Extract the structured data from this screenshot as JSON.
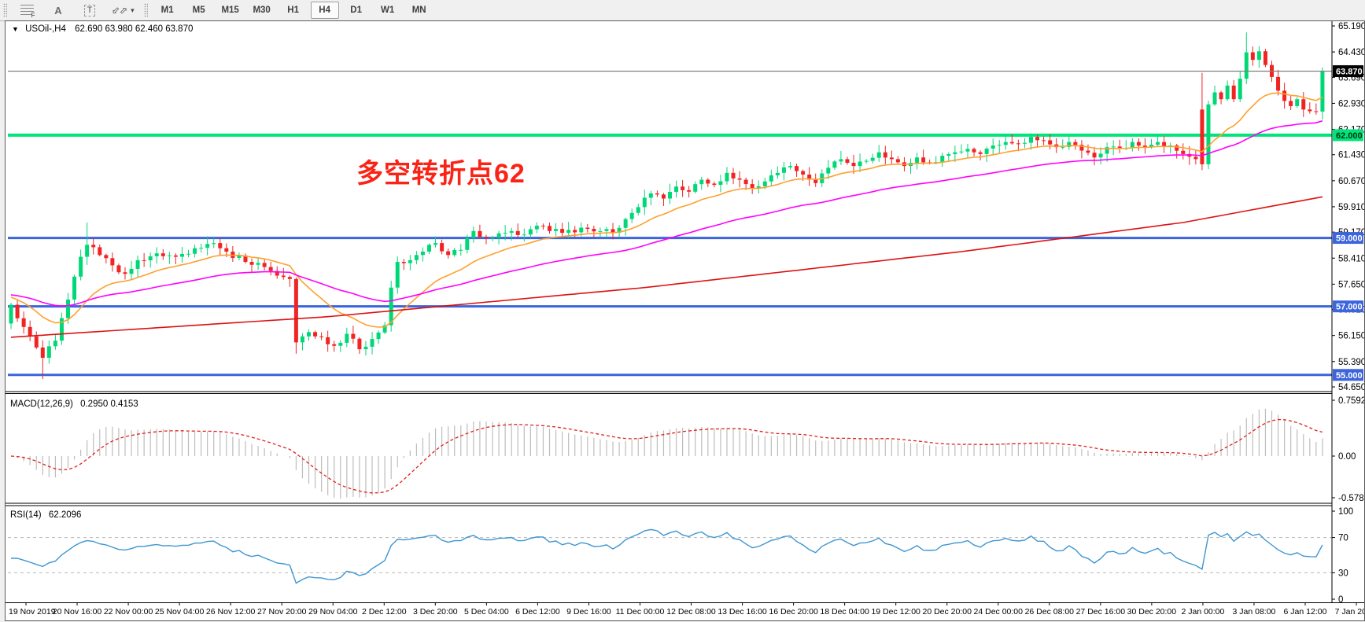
{
  "toolbar": {
    "tools": [
      {
        "name": "fibonacci-grid",
        "glyph": "fib",
        "label": "F"
      },
      {
        "name": "text-label",
        "glyph": "A"
      },
      {
        "name": "text-box",
        "glyph": "T"
      },
      {
        "name": "arrows-objects",
        "glyph": "arrows",
        "caret": "▾"
      }
    ],
    "timeframes": [
      "M1",
      "M5",
      "M15",
      "M30",
      "H1",
      "H4",
      "D1",
      "W1",
      "MN"
    ],
    "active_timeframe": "H4"
  },
  "icons": {
    "symbol_caret": "▼",
    "dropdown_caret": "▾",
    "arrows_glyph": "⬃⬀"
  },
  "title": {
    "symbol_line": "USOil-,H4",
    "ohlc_line": "62.690 63.980 62.460 63.870"
  },
  "annotation": {
    "text": "多空转折点62",
    "color": "#fb2316"
  },
  "macd_panel": {
    "label": "MACD(12,26,9)",
    "values": "0.2950 0.4153",
    "ticks": [
      "0.7592",
      "0.00",
      "-0.5785"
    ]
  },
  "rsi_panel": {
    "label": "RSI(14)",
    "value": "62.2096",
    "ticks": [
      "100",
      "70",
      "30",
      "0"
    ]
  },
  "colors": {
    "bull": "#00d877",
    "bear": "#f02422",
    "ma_fast": "#ffa02e",
    "ma_mid": "#ff00ff",
    "ma_slow": "#dd1212",
    "level_blue": "#3c64dc",
    "level_green": "#00e57a",
    "current_gray": "#808080",
    "macd_hist": "#bdbdbd",
    "macd_signal": "#e02020",
    "rsi_line": "#3e96d2",
    "rsi_levels": "#b8b8b8",
    "axis_text": "#000000"
  },
  "chart_data": {
    "type": "candlestick",
    "symbol": "USOil-",
    "period": "H4",
    "bars_total": 208,
    "price_axis": {
      "min": 54.65,
      "max": 65.19,
      "tick_labels": [
        "65.190",
        "64.430",
        "63.690",
        "62.930",
        "62.170",
        "61.430",
        "60.670",
        "59.910",
        "59.170",
        "58.410",
        "57.650",
        "56.910",
        "56.150",
        "55.390",
        "54.650"
      ],
      "tick_values": [
        65.19,
        64.43,
        63.69,
        62.93,
        62.17,
        61.43,
        60.67,
        59.91,
        59.17,
        58.41,
        57.65,
        56.91,
        56.15,
        55.39,
        54.65
      ]
    },
    "last_candle": {
      "open": 62.69,
      "high": 63.98,
      "low": 62.46,
      "close": 63.87
    },
    "current_price": {
      "value": 63.87,
      "label": "63.870",
      "badge_bg": "#000000",
      "badge_fg": "#ffffff"
    },
    "level_lines": [
      {
        "price": 62.0,
        "label": "62.000",
        "color": "#00e57a",
        "width": 4,
        "badge_bg": "#00e57a",
        "badge_fg": "#003018"
      },
      {
        "price": 59.0,
        "label": "59.000",
        "color": "#3c64dc",
        "width": 3,
        "badge_bg": "#3c64dc",
        "badge_fg": "#ffffff"
      },
      {
        "price": 57.0,
        "label": "57.000",
        "color": "#3c64dc",
        "width": 3,
        "badge_bg": "#3c64dc",
        "badge_fg": "#ffffff"
      },
      {
        "price": 55.0,
        "label": "55.000",
        "color": "#3c64dc",
        "width": 3,
        "badge_bg": "#3c64dc",
        "badge_fg": "#ffffff"
      }
    ],
    "close_anchors": [
      [
        0,
        57.05
      ],
      [
        2,
        56.4
      ],
      [
        4,
        55.8
      ],
      [
        5,
        55.5
      ],
      [
        7,
        56.0
      ],
      [
        9,
        57.2
      ],
      [
        11,
        58.45
      ],
      [
        12,
        58.8
      ],
      [
        14,
        58.5
      ],
      [
        16,
        58.2
      ],
      [
        18,
        57.95
      ],
      [
        20,
        58.35
      ],
      [
        23,
        58.55
      ],
      [
        26,
        58.45
      ],
      [
        29,
        58.7
      ],
      [
        32,
        58.85
      ],
      [
        34,
        58.6
      ],
      [
        37,
        58.3
      ],
      [
        40,
        58.15
      ],
      [
        42,
        57.9
      ],
      [
        44,
        57.8
      ],
      [
        45,
        55.95
      ],
      [
        47,
        56.25
      ],
      [
        49,
        56.1
      ],
      [
        51,
        55.85
      ],
      [
        53,
        56.2
      ],
      [
        55,
        55.75
      ],
      [
        57,
        56.05
      ],
      [
        59,
        56.45
      ],
      [
        60,
        57.55
      ],
      [
        61,
        58.3
      ],
      [
        63,
        58.35
      ],
      [
        65,
        58.6
      ],
      [
        67,
        58.85
      ],
      [
        69,
        58.5
      ],
      [
        71,
        58.65
      ],
      [
        73,
        59.2
      ],
      [
        75,
        59.0
      ],
      [
        78,
        59.15
      ],
      [
        81,
        59.1
      ],
      [
        84,
        59.35
      ],
      [
        87,
        59.15
      ],
      [
        90,
        59.3
      ],
      [
        93,
        59.2
      ],
      [
        95,
        59.15
      ],
      [
        97,
        59.55
      ],
      [
        99,
        59.9
      ],
      [
        101,
        60.3
      ],
      [
        103,
        60.15
      ],
      [
        105,
        60.5
      ],
      [
        107,
        60.35
      ],
      [
        109,
        60.7
      ],
      [
        111,
        60.55
      ],
      [
        113,
        60.9
      ],
      [
        115,
        60.7
      ],
      [
        117,
        60.45
      ],
      [
        119,
        60.65
      ],
      [
        121,
        60.9
      ],
      [
        123,
        61.1
      ],
      [
        125,
        60.85
      ],
      [
        127,
        60.6
      ],
      [
        129,
        61.05
      ],
      [
        131,
        61.3
      ],
      [
        133,
        61.1
      ],
      [
        135,
        61.25
      ],
      [
        137,
        61.5
      ],
      [
        139,
        61.3
      ],
      [
        141,
        61.1
      ],
      [
        143,
        61.35
      ],
      [
        145,
        61.2
      ],
      [
        147,
        61.4
      ],
      [
        149,
        61.5
      ],
      [
        151,
        61.6
      ],
      [
        153,
        61.45
      ],
      [
        155,
        61.7
      ],
      [
        157,
        61.8
      ],
      [
        159,
        61.75
      ],
      [
        161,
        61.95
      ],
      [
        163,
        61.85
      ],
      [
        165,
        61.65
      ],
      [
        167,
        61.8
      ],
      [
        169,
        61.55
      ],
      [
        171,
        61.35
      ],
      [
        173,
        61.65
      ],
      [
        175,
        61.6
      ],
      [
        177,
        61.8
      ],
      [
        179,
        61.65
      ],
      [
        181,
        61.8
      ],
      [
        183,
        61.7
      ],
      [
        185,
        61.45
      ],
      [
        187,
        61.3
      ],
      [
        188,
        61.15
      ],
      [
        189,
        62.9
      ],
      [
        190,
        63.25
      ],
      [
        191,
        63.05
      ],
      [
        192,
        63.45
      ],
      [
        193,
        63.05
      ],
      [
        194,
        63.65
      ],
      [
        195,
        64.42
      ],
      [
        196,
        64.2
      ],
      [
        197,
        64.45
      ],
      [
        198,
        64.05
      ],
      [
        199,
        63.7
      ],
      [
        200,
        63.3
      ],
      [
        201,
        63.0
      ],
      [
        202,
        62.85
      ],
      [
        203,
        63.05
      ],
      [
        204,
        62.75
      ],
      [
        205,
        62.7
      ],
      [
        206,
        62.69
      ],
      [
        207,
        63.87
      ]
    ],
    "special_candles": {
      "5": {
        "l": 54.88
      },
      "12": {
        "h": 59.45
      },
      "45": {
        "o": 57.8,
        "h": 57.85,
        "l": 55.62,
        "c": 55.95
      },
      "188": {
        "o": 62.75,
        "h": 63.82,
        "l": 60.98,
        "c": 61.15
      },
      "195": {
        "h": 65.0
      },
      "207": {
        "o": 62.69,
        "h": 63.98,
        "l": 62.46,
        "c": 63.87
      }
    },
    "moving_averages": [
      {
        "name": "fast-ma",
        "color": "#ffa02e",
        "type": "ema",
        "period": 16,
        "seed": 57.3
      },
      {
        "name": "mid-ma",
        "color": "#ff00ff",
        "type": "ema",
        "period": 52,
        "seed": 57.35
      },
      {
        "name": "slow-ma",
        "color": "#dd1212",
        "type": "anchors",
        "points": [
          [
            0,
            56.1
          ],
          [
            50,
            56.7
          ],
          [
            100,
            57.55
          ],
          [
            150,
            58.6
          ],
          [
            185,
            59.45
          ],
          [
            207,
            60.2
          ]
        ]
      }
    ],
    "macd": {
      "fast": 12,
      "slow": 26,
      "signal": 9,
      "display_max": 0.7592,
      "display_min": -0.5785
    },
    "rsi": {
      "period": 14,
      "last": 62.2096,
      "levels": [
        70,
        30
      ],
      "range": [
        0,
        100
      ]
    },
    "time_labels": [
      "19 Nov 2019",
      "20 Nov 16:00",
      "22 Nov 00:00",
      "25 Nov 04:00",
      "26 Nov 12:00",
      "27 Nov 20:00",
      "29 Nov 04:00",
      "2 Dec 12:00",
      "3 Dec 20:00",
      "5 Dec 04:00",
      "6 Dec 12:00",
      "9 Dec 16:00",
      "11 Dec 00:00",
      "12 Dec 08:00",
      "13 Dec 16:00",
      "16 Dec 20:00",
      "18 Dec 04:00",
      "19 Dec 12:00",
      "20 Dec 20:00",
      "24 Dec 00:00",
      "26 Dec 08:00",
      "27 Dec 16:00",
      "30 Dec 20:00",
      "2 Jan 00:00",
      "3 Jan 08:00",
      "6 Jan 12:00",
      "7 Jan 20:00"
    ]
  }
}
